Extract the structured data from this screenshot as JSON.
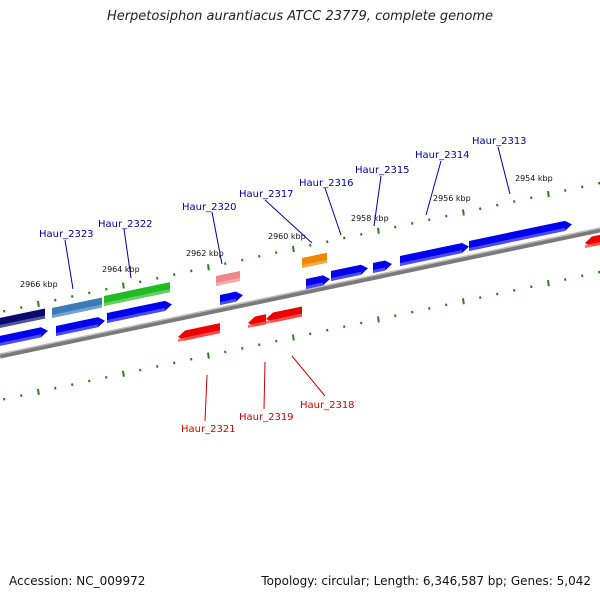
{
  "title": "Herpetosiphon aurantiacus ATCC 23779, complete genome",
  "footer": {
    "accession": "Accession: NC_009972",
    "summary": "Topology: circular; Length: 6,346,587 bp; Genes: 5,042"
  },
  "colors": {
    "backbone": "#888888",
    "tick": "#2e7d1e",
    "label_plus": "#0000aa",
    "label_minus": "#cc0000",
    "gene_blue": "#0000ee",
    "gene_red": "#ee0000",
    "gene_navy": "#0a0a6e",
    "gene_steel": "#3a7bb8",
    "gene_green": "#22bb22",
    "gene_pink": "#ee8888",
    "gene_orange": "#ee8800"
  },
  "scale_labels": [
    "2966 kbp",
    "2964 kbp",
    "2962 kbp",
    "2960 kbp",
    "2958 kbp",
    "2956 kbp",
    "2954 kbp"
  ],
  "gene_labels_top": [
    "Haur_2323",
    "Haur_2322",
    "Haur_2320",
    "Haur_2317",
    "Haur_2316",
    "Haur_2315",
    "Haur_2314",
    "Haur_2313"
  ],
  "gene_labels_bottom": [
    "Haur_2321",
    "Haur_2319",
    "Haur_2318"
  ]
}
